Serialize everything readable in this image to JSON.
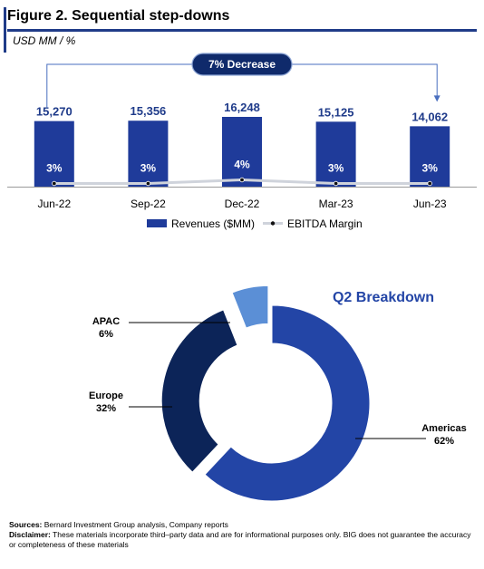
{
  "figure": {
    "title": "Figure 2. Sequential step-downs",
    "units": "USD MM / %"
  },
  "chart_data": [
    {
      "type": "bar",
      "categories": [
        "Jun-22",
        "Sep-22",
        "Dec-22",
        "Mar-23",
        "Jun-23"
      ],
      "series": [
        {
          "name": "Revenues ($MM)",
          "type": "bar",
          "values": [
            15270,
            15356,
            16248,
            15125,
            14062
          ],
          "labels": [
            "15,270",
            "15,356",
            "16,248",
            "15,125",
            "14,062"
          ]
        },
        {
          "name": "EBITDA Margin",
          "type": "line",
          "values": [
            3,
            3,
            4,
            3,
            3
          ],
          "labels": [
            "3%",
            "3%",
            "4%",
            "3%",
            "3%"
          ]
        }
      ],
      "annotation": "7% Decrease",
      "colors": {
        "bar": "#1f3b9a",
        "line": "#cfd3db",
        "marker": "#111111"
      }
    },
    {
      "type": "pie",
      "title": "Q2 Breakdown",
      "slices": [
        {
          "name": "Americas",
          "value": 62,
          "label": "62%",
          "color": "#2345a6"
        },
        {
          "name": "Europe",
          "value": 32,
          "label": "32%",
          "color": "#0c2458"
        },
        {
          "name": "APAC",
          "value": 6,
          "label": "6%",
          "color": "#5b8fd6"
        }
      ]
    }
  ],
  "footer": {
    "sources_label": "Sources:",
    "sources_text": " Bernard Investment Group analysis, Company reports",
    "disclaimer_label": "Disclaimer:",
    "disclaimer_text": " These materials incorporate third–party data and are for informational purposes only. BIG does not guarantee the accuracy or completeness of these materials"
  }
}
